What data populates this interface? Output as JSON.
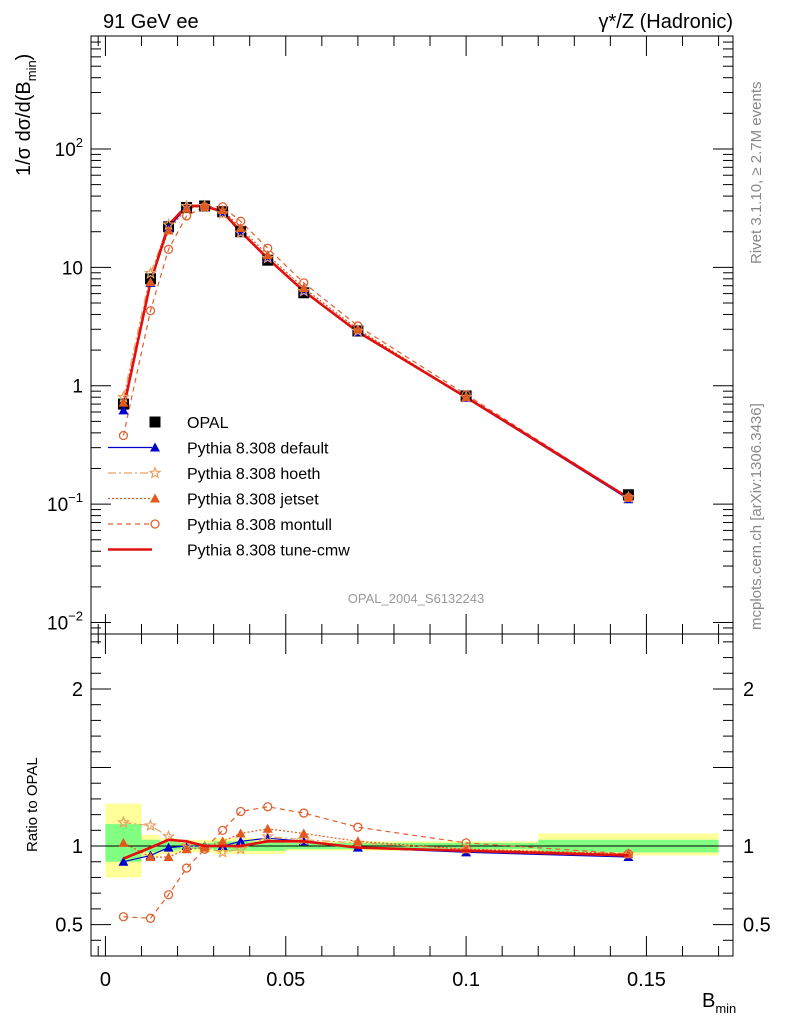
{
  "header": {
    "left": "91 GeV ee",
    "right": "γ*/Z (Hadronic)"
  },
  "side": {
    "rivet": "Rivet 3.1.10, ≥ 2.7M events",
    "mcplots": "mcplots.cern.ch [arXiv:1306.3436]"
  },
  "watermark": "OPAL_2004_S6132243",
  "colors": {
    "data": "#000000",
    "default": "#0000cc",
    "hoeth": "#e8a060",
    "jetset": "#e05a1e",
    "montull": "#e06030",
    "cmw": "#e01010",
    "band_inner": "#80ff80",
    "band_outer": "#ffff99"
  },
  "chart_data": [
    {
      "type": "scatter",
      "name": "main",
      "ylabel": "1/σ dσ/d(B_min)",
      "yscale": "log",
      "ylim": [
        0.008,
        900
      ],
      "xlim": [
        -0.004,
        0.174
      ],
      "yticks": [
        {
          "value": 0.01,
          "label": "10⁻²"
        },
        {
          "value": 0.1,
          "label": "10⁻¹"
        },
        {
          "value": 1,
          "label": "1"
        },
        {
          "value": 10,
          "label": "10"
        },
        {
          "value": 100,
          "label": "10²"
        }
      ],
      "legend": {
        "position": "lower-left"
      },
      "x": [
        0.005,
        0.0125,
        0.0175,
        0.0225,
        0.0275,
        0.0325,
        0.0375,
        0.045,
        0.055,
        0.07,
        0.1,
        0.145
      ],
      "series": [
        {
          "key": "data",
          "name": "OPAL",
          "marker": "square",
          "values": [
            0.7,
            8.0,
            22.0,
            32.0,
            33.0,
            29.5,
            20.0,
            11.5,
            6.1,
            2.9,
            0.82,
            0.12
          ]
        },
        {
          "key": "default",
          "name": "Pythia 8.308 default",
          "marker": "triangle",
          "style": "solid",
          "values": [
            0.62,
            7.4,
            21.5,
            32.5,
            33.5,
            29.5,
            20.5,
            12.0,
            6.3,
            2.85,
            0.79,
            0.11
          ]
        },
        {
          "key": "hoeth",
          "name": "Pythia 8.308 hoeth",
          "marker": "star",
          "style": "dashdot",
          "values": [
            0.8,
            8.9,
            22.9,
            32.8,
            32.8,
            28.5,
            19.6,
            12.0,
            6.3,
            2.9,
            0.8,
            0.114
          ]
        },
        {
          "key": "jetset",
          "name": "Pythia 8.308 jetset",
          "marker": "triangle",
          "style": "dotted",
          "values": [
            0.72,
            7.5,
            20.5,
            31.5,
            32.8,
            30.5,
            21.5,
            12.7,
            6.7,
            3.0,
            0.8,
            0.115
          ]
        },
        {
          "key": "montull",
          "name": "Pythia 8.308 montull",
          "marker": "circle",
          "style": "dashed",
          "values": [
            0.38,
            4.3,
            14.2,
            27.2,
            32.5,
            32.5,
            24.5,
            14.5,
            7.4,
            3.2,
            0.84,
            0.114
          ]
        },
        {
          "key": "cmw",
          "name": "Pythia 8.308 tune-cmw",
          "marker": "none",
          "style": "solid-thick",
          "values": [
            0.64,
            7.5,
            22.8,
            33.0,
            33.0,
            29.5,
            20.0,
            11.9,
            6.3,
            2.85,
            0.8,
            0.113
          ]
        }
      ]
    },
    {
      "type": "scatter",
      "name": "ratio",
      "ylabel": "Ratio to OPAL",
      "xlabel": "B_min",
      "ylim": [
        0.3,
        2.35
      ],
      "xlim": [
        -0.004,
        0.174
      ],
      "yticks": [
        {
          "value": 0.5,
          "label": "0.5"
        },
        {
          "value": 1,
          "label": "1"
        },
        {
          "value": 2,
          "label": "2"
        }
      ],
      "xticks": [
        {
          "value": 0,
          "label": "0"
        },
        {
          "value": 0.05,
          "label": "0.05"
        },
        {
          "value": 0.1,
          "label": "0.1"
        },
        {
          "value": 0.15,
          "label": "0.15"
        }
      ],
      "bands": [
        {
          "x0": 0.0,
          "x1": 0.01,
          "outer": [
            0.8,
            1.27
          ],
          "inner": [
            0.9,
            1.14
          ]
        },
        {
          "x0": 0.01,
          "x1": 0.015,
          "outer": [
            0.93,
            1.07
          ],
          "inner": [
            0.96,
            1.04
          ]
        },
        {
          "x0": 0.015,
          "x1": 0.02,
          "outer": [
            0.95,
            1.05
          ],
          "inner": [
            0.97,
            1.03
          ]
        },
        {
          "x0": 0.02,
          "x1": 0.025,
          "outer": [
            0.96,
            1.04
          ],
          "inner": [
            0.98,
            1.02
          ]
        },
        {
          "x0": 0.025,
          "x1": 0.03,
          "outer": [
            0.96,
            1.04
          ],
          "inner": [
            0.98,
            1.02
          ]
        },
        {
          "x0": 0.03,
          "x1": 0.035,
          "outer": [
            0.95,
            1.05
          ],
          "inner": [
            0.97,
            1.03
          ]
        },
        {
          "x0": 0.035,
          "x1": 0.04,
          "outer": [
            0.95,
            1.05
          ],
          "inner": [
            0.97,
            1.03
          ]
        },
        {
          "x0": 0.04,
          "x1": 0.05,
          "outer": [
            0.95,
            1.05
          ],
          "inner": [
            0.97,
            1.03
          ]
        },
        {
          "x0": 0.05,
          "x1": 0.06,
          "outer": [
            0.97,
            1.03
          ],
          "inner": [
            0.98,
            1.02
          ]
        },
        {
          "x0": 0.06,
          "x1": 0.08,
          "outer": [
            0.97,
            1.03
          ],
          "inner": [
            0.98,
            1.02
          ]
        },
        {
          "x0": 0.08,
          "x1": 0.12,
          "outer": [
            0.97,
            1.03
          ],
          "inner": [
            0.98,
            1.02
          ]
        },
        {
          "x0": 0.12,
          "x1": 0.17,
          "outer": [
            0.94,
            1.08
          ],
          "inner": [
            0.96,
            1.04
          ]
        }
      ],
      "x": [
        0.005,
        0.0125,
        0.0175,
        0.0225,
        0.0275,
        0.0325,
        0.0375,
        0.045,
        0.055,
        0.07,
        0.1,
        0.145
      ],
      "series": [
        {
          "key": "default",
          "values": [
            0.9,
            0.94,
            0.99,
            1.0,
            1.0,
            1.0,
            1.03,
            1.05,
            1.03,
            0.99,
            0.96,
            0.93
          ]
        },
        {
          "key": "hoeth",
          "values": [
            1.15,
            1.13,
            1.06,
            1.0,
            0.99,
            0.96,
            0.98,
            1.06,
            1.04,
            1.02,
            0.98,
            0.95
          ]
        },
        {
          "key": "jetset",
          "values": [
            1.02,
            0.93,
            0.93,
            0.98,
            0.99,
            1.03,
            1.08,
            1.11,
            1.08,
            1.03,
            0.98,
            0.95
          ]
        },
        {
          "key": "montull",
          "values": [
            0.55,
            0.54,
            0.69,
            0.86,
            0.98,
            1.1,
            1.22,
            1.25,
            1.21,
            1.12,
            1.02,
            0.95
          ]
        },
        {
          "key": "cmw",
          "values": [
            0.92,
            0.99,
            1.04,
            1.03,
            1.0,
            1.0,
            1.0,
            1.03,
            1.03,
            0.99,
            0.97,
            0.94
          ]
        }
      ]
    }
  ]
}
